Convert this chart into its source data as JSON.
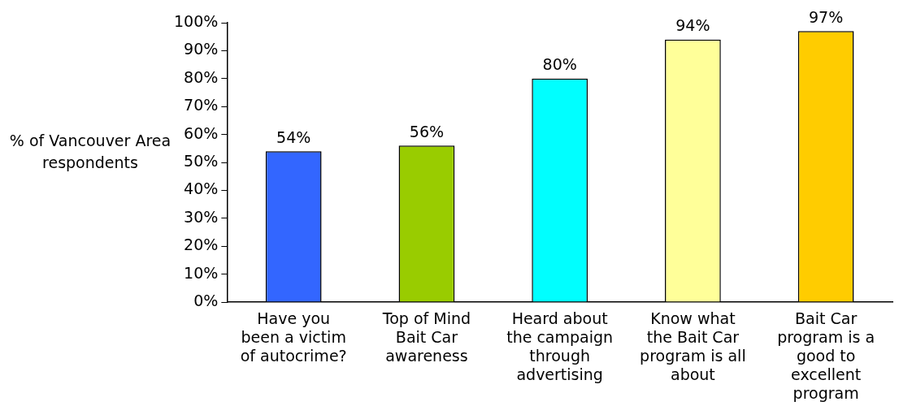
{
  "chart_data": {
    "type": "bar",
    "ylabel": "% of Vancouver Area respondents",
    "categories": [
      "Have you been a victim of autocrime?",
      "Top of Mind Bait Car awareness",
      "Heard about the campaign through advertising",
      "Know what the Bait Car program is all about",
      "Bait Car program is a good to excellent program"
    ],
    "values": [
      54,
      56,
      80,
      94,
      97
    ],
    "colors": [
      "#3366ff",
      "#99cc00",
      "#00ffff",
      "#ffff99",
      "#ffcc00"
    ],
    "value_labels": [
      "54%",
      "56%",
      "80%",
      "94%",
      "97%"
    ],
    "ylim": [
      0,
      100
    ],
    "yticks": [
      {
        "value": 0,
        "label": "0%"
      },
      {
        "value": 10,
        "label": "10%"
      },
      {
        "value": 20,
        "label": "20%"
      },
      {
        "value": 30,
        "label": "30%"
      },
      {
        "value": 40,
        "label": "40%"
      },
      {
        "value": 50,
        "label": "50%"
      },
      {
        "value": 60,
        "label": "60%"
      },
      {
        "value": 70,
        "label": "70%"
      },
      {
        "value": 80,
        "label": "80%"
      },
      {
        "value": 90,
        "label": "90%"
      },
      {
        "value": 100,
        "label": "100%"
      }
    ],
    "grid": false,
    "legend": false
  }
}
